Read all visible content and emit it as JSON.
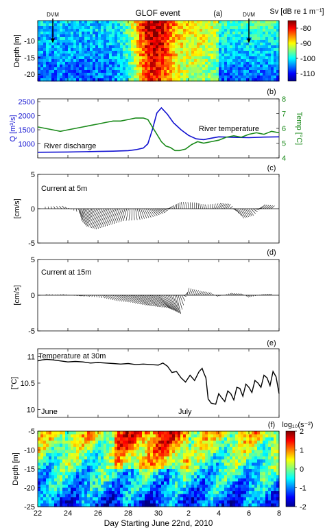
{
  "figure": {
    "xlabel": "Day Starting June 22nd, 2010",
    "xticks": [
      22,
      24,
      26,
      28,
      30,
      2,
      4,
      6,
      8
    ]
  },
  "chart_data": [
    {
      "panel": "a",
      "type": "heatmap",
      "panel_label": "(a)",
      "title": "GLOF event",
      "ylabel": "Depth [m]",
      "ylim": [
        -22,
        -4
      ],
      "yticks": [
        -10,
        -15,
        -20
      ],
      "annotations": [
        {
          "text": "DVM",
          "x_day": 1.0,
          "arrow": "down"
        },
        {
          "text": "DVM",
          "x_day": 14.0,
          "arrow": "down"
        }
      ],
      "colorbar": {
        "label": "Sv [dB re 1 m⁻¹]",
        "range": [
          -115,
          -75
        ],
        "ticks": [
          -80,
          -90,
          -100,
          -110
        ]
      }
    },
    {
      "panel": "b",
      "type": "line",
      "panel_label": "(b)",
      "ylabel_left": "Q [m³/s]",
      "ylabel_right": "Temp [°C]",
      "ylim_left": [
        500,
        2600
      ],
      "yticks_left": [
        1000,
        1500,
        2000,
        2500
      ],
      "ylim_right": [
        4,
        8
      ],
      "yticks_right": [
        4,
        5,
        6,
        7,
        8
      ],
      "annotations": [
        {
          "text": "River discharge"
        },
        {
          "text": "River temperature"
        }
      ],
      "series": [
        {
          "name": "River discharge",
          "axis": "left",
          "color": "#1010d0",
          "x": [
            0,
            2,
            4,
            5,
            6,
            6.5,
            7,
            7.3,
            7.6,
            7.9,
            8.2,
            8.6,
            9.0,
            9.5,
            10,
            10.5,
            11,
            11.5,
            12,
            13,
            14,
            15,
            16
          ],
          "y": [
            700,
            710,
            730,
            740,
            760,
            790,
            850,
            1000,
            1500,
            2100,
            2280,
            2050,
            1750,
            1500,
            1300,
            1180,
            1150,
            1200,
            1250,
            1230,
            1220,
            1240,
            1250
          ]
        },
        {
          "name": "River temperature",
          "axis": "right",
          "color": "#1a8a1a",
          "x": [
            0,
            0.5,
            1,
            1.5,
            2,
            2.5,
            3,
            3.5,
            4,
            4.5,
            5,
            5.5,
            6,
            6.5,
            7,
            7.3,
            7.6,
            7.9,
            8.2,
            8.5,
            8.8,
            9.1,
            9.4,
            9.8,
            10.2,
            10.6,
            11,
            11.5,
            12,
            12.5,
            13,
            13.5,
            14,
            14.5,
            15,
            15.5,
            16
          ],
          "y": [
            6.1,
            6.0,
            5.9,
            5.8,
            5.9,
            6.0,
            6.1,
            6.2,
            6.3,
            6.4,
            6.5,
            6.5,
            6.6,
            6.7,
            6.7,
            6.6,
            6.1,
            5.6,
            5.1,
            4.8,
            4.7,
            4.5,
            4.5,
            4.6,
            4.9,
            5.1,
            5.0,
            5.1,
            5.2,
            5.4,
            5.5,
            5.4,
            5.6,
            5.7,
            5.6,
            5.8,
            5.7
          ]
        }
      ]
    },
    {
      "panel": "c",
      "type": "line",
      "panel_label": "(c)",
      "label": "Current at 5m",
      "ylabel": "[cm/s]",
      "ylim": [
        -5,
        5
      ],
      "yticks": [
        5,
        0,
        -5
      ],
      "x": [
        0.5,
        1.8,
        2.7,
        3.2,
        3.8,
        4.5,
        5.2,
        5.9,
        6.6,
        7.3,
        8.0,
        8.8,
        9.6,
        10.4,
        11.2,
        11.9,
        12.6,
        13.3,
        14.0,
        14.8,
        15.6
      ],
      "u": [
        0.0,
        -0.4,
        0.2,
        -0.6,
        -1.2,
        -1.4,
        -1.0,
        -0.5,
        0.4,
        0.8,
        1.0,
        0.3,
        -0.2,
        0.0,
        -0.2,
        0.5,
        0.4,
        0.8,
        0.7,
        0.6,
        0.5
      ],
      "v": [
        0.3,
        0.4,
        -0.6,
        -1.8,
        -2.6,
        -3.0,
        -2.4,
        -1.8,
        -1.6,
        -1.2,
        -0.6,
        0.4,
        1.0,
        0.9,
        0.6,
        0.8,
        0.7,
        -1.4,
        -1.0,
        0.6,
        0.4
      ]
    },
    {
      "panel": "d",
      "type": "line",
      "panel_label": "(d)",
      "label": "Current at 15m",
      "ylabel": "[cm/s]",
      "ylim": [
        -5,
        5
      ],
      "yticks": [
        5,
        0,
        -5
      ],
      "x": [
        0.5,
        1.8,
        2.7,
        3.5,
        4.3,
        5.0,
        5.7,
        6.4,
        7.1,
        7.8,
        8.5,
        9.2,
        9.9,
        10.6,
        11.3,
        12.0,
        12.7,
        13.4,
        14.1,
        14.8,
        15.5
      ],
      "u": [
        0.3,
        -0.3,
        0.3,
        -0.2,
        0.3,
        0.6,
        1.0,
        1.6,
        1.8,
        1.9,
        1.3,
        0.6,
        0.3,
        0.4,
        0.3,
        -0.2,
        0.3,
        0.3,
        -0.3,
        0.2,
        0.3
      ],
      "v": [
        0.1,
        0.1,
        -0.1,
        -0.2,
        -0.4,
        -0.8,
        -1.0,
        -1.4,
        -1.6,
        -1.8,
        -2.2,
        -2.6,
        1.0,
        0.6,
        0.4,
        -0.2,
        0.3,
        0.2,
        -0.3,
        0.1,
        0.2
      ]
    },
    {
      "panel": "e",
      "type": "line",
      "panel_label": "(e)",
      "label": "Temperature at 30m",
      "ylabel": "[°C]",
      "ylim": [
        9.85,
        11.15
      ],
      "yticks": [
        11,
        10.5,
        10
      ],
      "annotations": [
        {
          "text": "June"
        },
        {
          "text": "July"
        }
      ],
      "series": [
        {
          "name": "",
          "color": "#000000",
          "x": [
            0,
            0.3,
            0.6,
            1.0,
            1.5,
            2.0,
            2.5,
            3.0,
            3.5,
            4.0,
            4.5,
            5.0,
            5.5,
            6.0,
            6.5,
            7.0,
            7.5,
            8.0,
            8.3,
            8.6,
            8.9,
            9.2,
            9.5,
            9.8,
            10.1,
            10.4,
            10.7,
            10.9,
            11.0,
            11.15,
            11.3,
            11.5,
            11.8,
            12.0,
            12.2,
            12.4,
            12.6,
            12.8,
            13.0,
            13.2,
            13.4,
            13.6,
            13.8,
            14.0,
            14.2,
            14.4,
            14.6,
            14.8,
            15.0,
            15.2,
            15.4,
            15.6,
            15.8,
            16.0
          ],
          "y": [
            10.92,
            10.94,
            10.95,
            10.94,
            10.92,
            10.9,
            10.91,
            10.9,
            10.88,
            10.89,
            10.88,
            10.87,
            10.86,
            10.87,
            10.85,
            10.86,
            10.85,
            10.84,
            10.88,
            10.82,
            10.7,
            10.72,
            10.6,
            10.52,
            10.65,
            10.55,
            10.72,
            10.78,
            10.7,
            10.6,
            10.2,
            10.12,
            10.1,
            10.3,
            10.22,
            10.15,
            10.35,
            10.3,
            10.18,
            10.42,
            10.4,
            10.25,
            10.48,
            10.42,
            10.32,
            10.55,
            10.5,
            10.42,
            10.65,
            10.6,
            10.45,
            10.72,
            10.62,
            10.3
          ]
        }
      ]
    },
    {
      "panel": "f",
      "type": "heatmap",
      "panel_label": "(f)",
      "ylabel": "Depth [m]",
      "ylim": [
        -25,
        -5
      ],
      "yticks": [
        -5,
        -10,
        -15,
        -20,
        -25
      ],
      "colorbar": {
        "label": "log₁₀(s⁻²)",
        "range": [
          -2,
          2
        ],
        "ticks": [
          2,
          1,
          0,
          -1,
          -2
        ]
      }
    }
  ],
  "colors": {
    "discharge": "#1010d0",
    "river_temp": "#1a8a1a",
    "jet": [
      "#00008f",
      "#0000ff",
      "#0080ff",
      "#00ffff",
      "#80ff80",
      "#ffff00",
      "#ff8000",
      "#ff0000",
      "#800000"
    ]
  }
}
